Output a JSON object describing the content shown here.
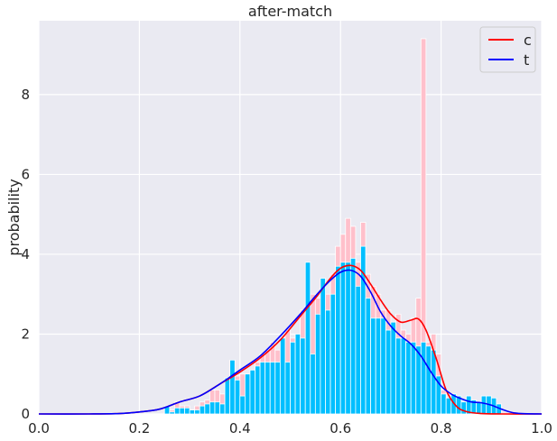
{
  "chart_data": {
    "type": "bar",
    "title": "after-match",
    "xlabel": "",
    "ylabel": "probability",
    "xlim": [
      0.0,
      1.0
    ],
    "ylim": [
      0,
      9.85
    ],
    "xticks": [
      "0.0",
      "0.2",
      "0.4",
      "0.6",
      "0.8",
      "1.0"
    ],
    "yticks": [
      "0",
      "2",
      "4",
      "6",
      "8"
    ],
    "grid": true,
    "legend_position": "top-right",
    "bin_width": 0.01,
    "series": [
      {
        "name": "c",
        "color": "#ffc0cb",
        "line_color": "#ff0000",
        "bins": [
          [
            0.25,
            0.2
          ],
          [
            0.26,
            0.1
          ],
          [
            0.27,
            0.3
          ],
          [
            0.28,
            0.2
          ],
          [
            0.29,
            0.2
          ],
          [
            0.3,
            0.1
          ],
          [
            0.31,
            0.2
          ],
          [
            0.32,
            0.3
          ],
          [
            0.33,
            0.35
          ],
          [
            0.34,
            0.6
          ],
          [
            0.35,
            0.6
          ],
          [
            0.36,
            0.5
          ],
          [
            0.37,
            0.9
          ],
          [
            0.38,
            1.1
          ],
          [
            0.39,
            0.95
          ],
          [
            0.4,
            1.0
          ],
          [
            0.41,
            1.0
          ],
          [
            0.42,
            1.1
          ],
          [
            0.43,
            1.3
          ],
          [
            0.44,
            1.5
          ],
          [
            0.45,
            1.6
          ],
          [
            0.46,
            1.8
          ],
          [
            0.47,
            1.6
          ],
          [
            0.48,
            1.6
          ],
          [
            0.49,
            2.1
          ],
          [
            0.5,
            1.9
          ],
          [
            0.51,
            2.0
          ],
          [
            0.52,
            2.6
          ],
          [
            0.53,
            2.7
          ],
          [
            0.54,
            3.0
          ],
          [
            0.55,
            2.9
          ],
          [
            0.56,
            2.6
          ],
          [
            0.57,
            3.0
          ],
          [
            0.58,
            3.5
          ],
          [
            0.59,
            4.2
          ],
          [
            0.6,
            4.5
          ],
          [
            0.61,
            4.9
          ],
          [
            0.62,
            4.7
          ],
          [
            0.63,
            3.8
          ],
          [
            0.64,
            4.8
          ],
          [
            0.65,
            3.5
          ],
          [
            0.66,
            3.2
          ],
          [
            0.67,
            3.0
          ],
          [
            0.68,
            2.6
          ],
          [
            0.69,
            2.6
          ],
          [
            0.7,
            2.3
          ],
          [
            0.71,
            2.5
          ],
          [
            0.72,
            2.1
          ],
          [
            0.73,
            2.0
          ],
          [
            0.74,
            2.4
          ],
          [
            0.75,
            2.9
          ],
          [
            0.76,
            9.4
          ],
          [
            0.77,
            1.8
          ],
          [
            0.78,
            2.0
          ],
          [
            0.79,
            1.5
          ],
          [
            0.8,
            0.6
          ],
          [
            0.81,
            0.3
          ],
          [
            0.82,
            0.25
          ],
          [
            0.83,
            0.15
          ],
          [
            0.84,
            0.1
          ]
        ],
        "kde": [
          [
            0.0,
            0.0
          ],
          [
            0.1,
            0.0
          ],
          [
            0.16,
            0.01
          ],
          [
            0.2,
            0.05
          ],
          [
            0.24,
            0.12
          ],
          [
            0.28,
            0.3
          ],
          [
            0.32,
            0.45
          ],
          [
            0.36,
            0.75
          ],
          [
            0.4,
            1.05
          ],
          [
            0.44,
            1.4
          ],
          [
            0.48,
            1.85
          ],
          [
            0.52,
            2.45
          ],
          [
            0.55,
            2.9
          ],
          [
            0.58,
            3.4
          ],
          [
            0.6,
            3.65
          ],
          [
            0.62,
            3.72
          ],
          [
            0.64,
            3.6
          ],
          [
            0.66,
            3.25
          ],
          [
            0.68,
            2.85
          ],
          [
            0.7,
            2.5
          ],
          [
            0.72,
            2.3
          ],
          [
            0.74,
            2.35
          ],
          [
            0.755,
            2.38
          ],
          [
            0.77,
            2.1
          ],
          [
            0.79,
            1.4
          ],
          [
            0.81,
            0.6
          ],
          [
            0.83,
            0.2
          ],
          [
            0.85,
            0.06
          ],
          [
            0.88,
            0.01
          ],
          [
            0.92,
            0.0
          ],
          [
            1.0,
            0.0
          ]
        ]
      },
      {
        "name": "t",
        "color": "#00bfff",
        "line_color": "#0000ff",
        "bins": [
          [
            0.25,
            0.2
          ],
          [
            0.26,
            0.05
          ],
          [
            0.27,
            0.15
          ],
          [
            0.28,
            0.15
          ],
          [
            0.29,
            0.15
          ],
          [
            0.3,
            0.1
          ],
          [
            0.31,
            0.1
          ],
          [
            0.32,
            0.2
          ],
          [
            0.33,
            0.25
          ],
          [
            0.34,
            0.3
          ],
          [
            0.35,
            0.3
          ],
          [
            0.36,
            0.25
          ],
          [
            0.37,
            0.9
          ],
          [
            0.38,
            1.35
          ],
          [
            0.39,
            0.85
          ],
          [
            0.4,
            0.45
          ],
          [
            0.41,
            1.0
          ],
          [
            0.42,
            1.1
          ],
          [
            0.43,
            1.2
          ],
          [
            0.44,
            1.3
          ],
          [
            0.45,
            1.3
          ],
          [
            0.46,
            1.3
          ],
          [
            0.47,
            1.3
          ],
          [
            0.48,
            1.9
          ],
          [
            0.49,
            1.3
          ],
          [
            0.5,
            1.8
          ],
          [
            0.51,
            2.0
          ],
          [
            0.52,
            1.9
          ],
          [
            0.53,
            3.8
          ],
          [
            0.54,
            1.5
          ],
          [
            0.55,
            2.5
          ],
          [
            0.56,
            3.4
          ],
          [
            0.57,
            2.6
          ],
          [
            0.58,
            3.0
          ],
          [
            0.59,
            3.7
          ],
          [
            0.6,
            3.8
          ],
          [
            0.61,
            3.8
          ],
          [
            0.62,
            3.9
          ],
          [
            0.63,
            3.2
          ],
          [
            0.64,
            4.2
          ],
          [
            0.65,
            2.9
          ],
          [
            0.66,
            2.4
          ],
          [
            0.67,
            2.4
          ],
          [
            0.68,
            2.4
          ],
          [
            0.69,
            2.1
          ],
          [
            0.7,
            2.3
          ],
          [
            0.71,
            1.9
          ],
          [
            0.72,
            1.9
          ],
          [
            0.73,
            1.8
          ],
          [
            0.74,
            1.8
          ],
          [
            0.75,
            1.7
          ],
          [
            0.76,
            1.8
          ],
          [
            0.77,
            1.7
          ],
          [
            0.78,
            1.6
          ],
          [
            0.79,
            0.95
          ],
          [
            0.8,
            0.5
          ],
          [
            0.81,
            0.4
          ],
          [
            0.82,
            0.5
          ],
          [
            0.83,
            0.45
          ],
          [
            0.84,
            0.3
          ],
          [
            0.85,
            0.45
          ],
          [
            0.86,
            0.35
          ],
          [
            0.87,
            0.3
          ],
          [
            0.88,
            0.45
          ],
          [
            0.89,
            0.45
          ],
          [
            0.9,
            0.4
          ],
          [
            0.91,
            0.25
          ]
        ],
        "kde": [
          [
            0.0,
            0.0
          ],
          [
            0.1,
            0.0
          ],
          [
            0.16,
            0.01
          ],
          [
            0.2,
            0.05
          ],
          [
            0.24,
            0.12
          ],
          [
            0.28,
            0.3
          ],
          [
            0.32,
            0.45
          ],
          [
            0.36,
            0.75
          ],
          [
            0.4,
            1.1
          ],
          [
            0.44,
            1.45
          ],
          [
            0.48,
            1.95
          ],
          [
            0.52,
            2.5
          ],
          [
            0.55,
            2.95
          ],
          [
            0.58,
            3.35
          ],
          [
            0.6,
            3.55
          ],
          [
            0.62,
            3.6
          ],
          [
            0.64,
            3.45
          ],
          [
            0.66,
            3.05
          ],
          [
            0.68,
            2.55
          ],
          [
            0.7,
            2.2
          ],
          [
            0.72,
            1.95
          ],
          [
            0.74,
            1.75
          ],
          [
            0.76,
            1.45
          ],
          [
            0.78,
            1.05
          ],
          [
            0.8,
            0.7
          ],
          [
            0.82,
            0.5
          ],
          [
            0.84,
            0.38
          ],
          [
            0.86,
            0.3
          ],
          [
            0.88,
            0.28
          ],
          [
            0.9,
            0.22
          ],
          [
            0.92,
            0.12
          ],
          [
            0.94,
            0.04
          ],
          [
            0.96,
            0.01
          ],
          [
            1.0,
            0.0
          ]
        ]
      }
    ]
  }
}
